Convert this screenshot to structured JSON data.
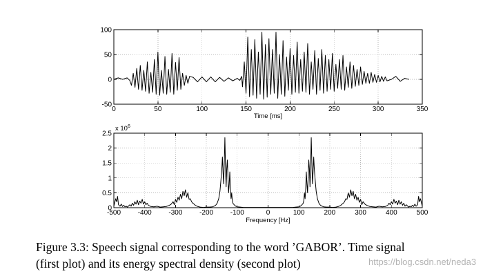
{
  "chart_data": [
    {
      "type": "line",
      "xlabel": "Time [ms]",
      "ylabel": "",
      "xlim": [
        0,
        350
      ],
      "ylim": [
        -50,
        100
      ],
      "x_ticks": [
        0,
        50,
        100,
        150,
        200,
        250,
        300,
        350
      ],
      "y_ticks": [
        -50,
        0,
        50,
        100
      ],
      "grid": true,
      "series": [
        {
          "x": [
            0,
            5,
            10,
            15,
            18,
            20,
            22,
            24,
            26,
            28,
            30,
            32,
            34,
            36,
            38,
            40,
            42,
            44,
            46,
            48,
            50,
            52,
            54,
            56,
            58,
            60,
            62,
            64,
            66,
            68,
            70,
            72,
            74,
            76,
            78,
            80,
            82,
            84,
            86,
            90,
            95,
            100,
            105,
            110,
            115,
            120,
            125,
            130,
            135,
            140,
            143,
            145,
            146,
            148,
            150,
            152,
            154,
            156,
            158,
            160,
            162,
            164,
            166,
            168,
            170,
            172,
            174,
            176,
            178,
            180,
            182,
            184,
            186,
            188,
            190,
            192,
            194,
            196,
            198,
            200,
            202,
            204,
            206,
            208,
            210,
            212,
            214,
            216,
            218,
            220,
            222,
            224,
            226,
            228,
            230,
            232,
            234,
            236,
            238,
            240,
            242,
            244,
            246,
            248,
            250,
            252,
            254,
            256,
            258,
            260,
            262,
            264,
            266,
            268,
            270,
            272,
            274,
            276,
            278,
            280,
            282,
            284,
            286,
            288,
            290,
            292,
            294,
            296,
            298,
            300,
            302,
            304,
            306,
            308,
            310,
            315,
            320,
            325,
            330,
            335
          ],
          "y": [
            0,
            3,
            0,
            3,
            -2,
            -12,
            12,
            -16,
            22,
            -20,
            28,
            -22,
            18,
            -24,
            35,
            -28,
            14,
            -26,
            40,
            -30,
            55,
            -32,
            18,
            -28,
            46,
            -30,
            20,
            -26,
            52,
            -30,
            34,
            -22,
            44,
            -20,
            12,
            -12,
            8,
            -8,
            6,
            4,
            -5,
            5,
            -5,
            5,
            -5,
            4,
            -4,
            3,
            -3,
            2,
            -2,
            6,
            -15,
            35,
            -28,
            85,
            -35,
            60,
            -32,
            80,
            -38,
            55,
            -30,
            95,
            -40,
            70,
            -36,
            82,
            -30,
            60,
            -28,
            95,
            -38,
            50,
            -30,
            78,
            -34,
            45,
            -22,
            62,
            -30,
            48,
            -26,
            75,
            -28,
            40,
            -24,
            55,
            -26,
            72,
            -30,
            35,
            -20,
            58,
            -30,
            42,
            -22,
            60,
            -28,
            48,
            -24,
            40,
            -20,
            52,
            -24,
            30,
            -18,
            40,
            -20,
            48,
            -22,
            25,
            -16,
            35,
            -18,
            28,
            -14,
            20,
            -12,
            25,
            -10,
            16,
            -8,
            12,
            -8,
            14,
            -6,
            10,
            -6,
            8,
            -5,
            6,
            -4,
            5,
            -3,
            0,
            6,
            -4,
            2,
            0
          ]
        }
      ]
    },
    {
      "type": "line",
      "xlabel": "Frequency [Hz]",
      "ylabel": "",
      "y_multiplier": "x 10",
      "y_exponent": "6",
      "xlim": [
        -500,
        500
      ],
      "ylim": [
        0,
        2.5
      ],
      "x_ticks": [
        -500,
        -400,
        -300,
        -200,
        -100,
        0,
        100,
        200,
        300,
        400,
        500
      ],
      "y_ticks": [
        0,
        0.5,
        1,
        1.5,
        2,
        2.5
      ],
      "grid": true,
      "series": [
        {
          "x": [
            -500,
            -497,
            -494,
            -491,
            -488,
            -485,
            -480,
            -476,
            -472,
            -468,
            -464,
            -460,
            -456,
            -452,
            -448,
            -444,
            -440,
            -436,
            -432,
            -428,
            -424,
            -420,
            -416,
            -412,
            -408,
            -404,
            -400,
            -396,
            -392,
            -388,
            -384,
            -380,
            -370,
            -360,
            -350,
            -340,
            -330,
            -320,
            -314,
            -308,
            -304,
            -300,
            -296,
            -292,
            -288,
            -284,
            -280,
            -276,
            -272,
            -268,
            -264,
            -260,
            -256,
            -252,
            -248,
            -244,
            -240,
            -236,
            -232,
            -228,
            -224,
            -220,
            -210,
            -200,
            -190,
            -180,
            -175,
            -170,
            -165,
            -160,
            -156,
            -153,
            -150,
            -148,
            -146,
            -144,
            -142,
            -140,
            -138,
            -136,
            -134,
            -132,
            -130,
            -128,
            -126,
            -124,
            -122,
            -120,
            -118,
            -116,
            -114,
            -110,
            -105,
            -100,
            -90,
            -80,
            -60,
            -40,
            -20,
            0,
            20,
            40,
            60,
            80,
            90,
            100,
            105,
            110,
            114,
            116,
            118,
            120,
            122,
            124,
            126,
            128,
            130,
            132,
            134,
            136,
            138,
            140,
            142,
            144,
            146,
            148,
            150,
            153,
            156,
            160,
            165,
            170,
            175,
            180,
            190,
            200,
            210,
            220,
            224,
            228,
            232,
            236,
            240,
            244,
            248,
            252,
            256,
            260,
            264,
            268,
            272,
            276,
            280,
            284,
            288,
            292,
            296,
            300,
            304,
            308,
            314,
            320,
            330,
            340,
            350,
            360,
            370,
            380,
            384,
            388,
            392,
            396,
            400,
            404,
            408,
            412,
            416,
            420,
            424,
            428,
            432,
            436,
            440,
            444,
            448,
            452,
            456,
            460,
            464,
            468,
            472,
            476,
            480,
            485,
            488,
            491,
            494,
            497,
            500
          ],
          "y": [
            0.05,
            0.18,
            0.3,
            0.2,
            0.38,
            0.1,
            0.05,
            0.12,
            0.04,
            0.08,
            0.03,
            0.05,
            0.02,
            0.06,
            0.1,
            0.05,
            0.15,
            0.08,
            0.2,
            0.12,
            0.25,
            0.1,
            0.22,
            0.15,
            0.28,
            0.12,
            0.2,
            0.1,
            0.15,
            0.08,
            0.06,
            0.04,
            0.03,
            0.05,
            0.02,
            0.03,
            0.04,
            0.08,
            0.12,
            0.2,
            0.1,
            0.28,
            0.18,
            0.35,
            0.25,
            0.45,
            0.3,
            0.55,
            0.4,
            0.6,
            0.35,
            0.5,
            0.28,
            0.3,
            0.2,
            0.15,
            0.12,
            0.08,
            0.06,
            0.04,
            0.03,
            0.02,
            0.01,
            0.02,
            0.02,
            0.03,
            0.05,
            0.08,
            0.15,
            0.3,
            0.55,
            0.9,
            1.3,
            1.7,
            1.2,
            0.8,
            1.5,
            2.35,
            1.4,
            0.7,
            1.3,
            1.6,
            1.0,
            0.5,
            0.8,
            1.2,
            0.6,
            0.3,
            0.5,
            0.25,
            0.15,
            0.1,
            0.05,
            0.03,
            0.02,
            0.01,
            0.01,
            0.01,
            0.01,
            0.01,
            0.01,
            0.01,
            0.01,
            0.01,
            0.02,
            0.03,
            0.05,
            0.1,
            0.15,
            0.25,
            0.5,
            0.3,
            0.6,
            1.2,
            0.8,
            0.5,
            1.0,
            1.6,
            1.3,
            0.7,
            1.4,
            2.35,
            1.5,
            0.8,
            1.2,
            1.7,
            1.3,
            0.9,
            0.55,
            0.3,
            0.15,
            0.08,
            0.05,
            0.03,
            0.02,
            0.02,
            0.01,
            0.02,
            0.03,
            0.04,
            0.06,
            0.08,
            0.12,
            0.15,
            0.2,
            0.3,
            0.28,
            0.5,
            0.35,
            0.6,
            0.4,
            0.55,
            0.3,
            0.45,
            0.25,
            0.35,
            0.18,
            0.28,
            0.1,
            0.2,
            0.12,
            0.08,
            0.04,
            0.03,
            0.02,
            0.05,
            0.03,
            0.04,
            0.06,
            0.08,
            0.15,
            0.1,
            0.2,
            0.12,
            0.28,
            0.15,
            0.22,
            0.1,
            0.25,
            0.12,
            0.2,
            0.08,
            0.15,
            0.05,
            0.1,
            0.06,
            0.02,
            0.05,
            0.03,
            0.08,
            0.04,
            0.12,
            0.05,
            0.1,
            0.38,
            0.2,
            0.3,
            0.18,
            0.05
          ]
        }
      ]
    }
  ],
  "caption": {
    "line1": "Figure 3.3: Speech signal corresponding to the word ’GABOR’. Time signal",
    "line2": "(first plot) and its energy spectral density (second plot)"
  },
  "watermark": "https://blog.csdn.net/neda3",
  "colors": {
    "signal": "#000000",
    "grid": "#b8b8b8",
    "background": "#ffffff"
  }
}
